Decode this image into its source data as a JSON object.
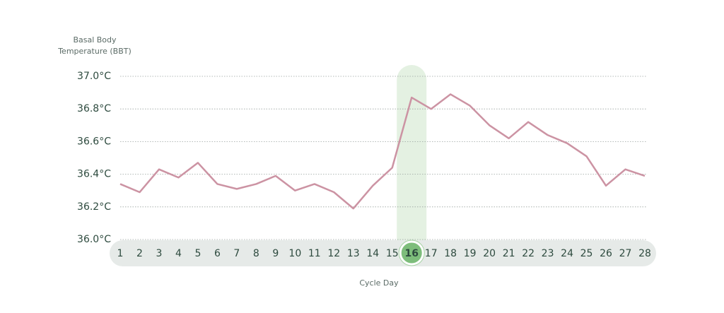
{
  "chart_data": {
    "type": "line",
    "y_axis_label": "Basal Body Temperature (BBT)",
    "x_axis_label": "Cycle Day",
    "categories": [
      1,
      2,
      3,
      4,
      5,
      6,
      7,
      8,
      9,
      10,
      11,
      12,
      13,
      14,
      15,
      16,
      17,
      18,
      19,
      20,
      21,
      22,
      23,
      24,
      25,
      26,
      27,
      28
    ],
    "values": [
      36.34,
      36.29,
      36.43,
      36.38,
      36.47,
      36.34,
      36.31,
      36.34,
      36.39,
      36.3,
      36.34,
      36.29,
      36.19,
      36.33,
      36.44,
      36.87,
      36.8,
      36.89,
      36.82,
      36.7,
      36.62,
      36.72,
      36.64,
      36.59,
      36.51,
      36.33,
      36.43,
      36.39
    ],
    "color": "#cc93a3",
    "highlight": 16,
    "ylim": [
      36.0,
      37.0
    ],
    "yticks": [
      {
        "value": 36.0,
        "label": "36.0°C"
      },
      {
        "value": 36.2,
        "label": "36.2°C"
      },
      {
        "value": 36.4,
        "label": "36.4°C"
      },
      {
        "value": 36.6,
        "label": "36.6°C"
      },
      {
        "value": 36.8,
        "label": "36.8°C"
      },
      {
        "value": 37.0,
        "label": "37.0°C"
      }
    ],
    "grid": true
  }
}
